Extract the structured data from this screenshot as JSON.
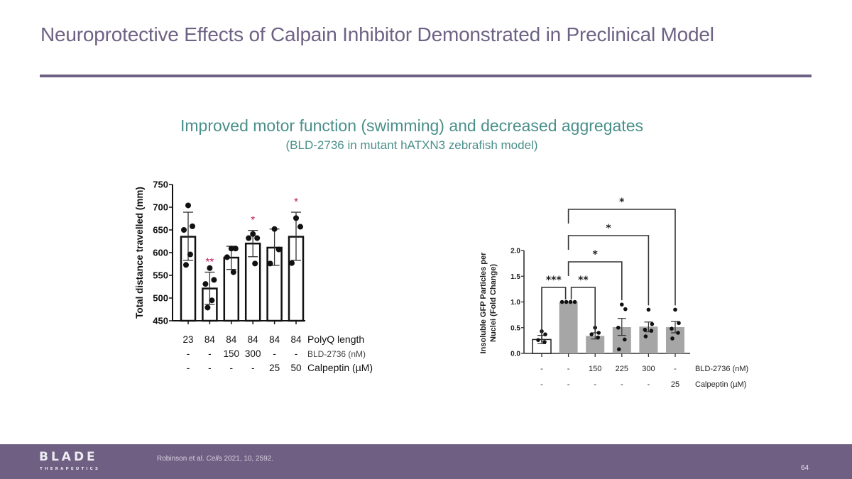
{
  "slide": {
    "title": "Neuroprotective Effects of Calpain Inhibitor Demonstrated in Preclinical Model",
    "subtitle": "Improved motor function (swimming) and decreased aggregates",
    "subtitle_detail": "(BLD-2736 in mutant hATXN3 zebrafish model)",
    "page_number": "64"
  },
  "footer": {
    "logo_main": "BLADE",
    "logo_sub": "THERAPEUTICS",
    "citation_authors": "Robinson et al. ",
    "citation_journal": "Cells",
    "citation_rest": " 2021, 10, 2592."
  },
  "colors": {
    "title": "#6e6284",
    "subtitle": "#4a8f8a",
    "footer_bg": "#6f5f83",
    "significance_red": "#c2185b",
    "bar_gray": "#a6a6a6"
  },
  "chart_data": [
    {
      "type": "bar",
      "title": "",
      "xlabel": "",
      "ylabel": "Total distance travelled (mm)",
      "ylim": [
        450,
        750
      ],
      "yticks": [
        "450",
        "500",
        "550",
        "600",
        "650",
        "700",
        "750"
      ],
      "grid": false,
      "categories": [
        "23|-|-",
        "84|-|-",
        "84|150|-",
        "84|300|-",
        "84|-|25",
        "84|-|50"
      ],
      "row_labels": [
        {
          "label": "PolyQ length",
          "values": [
            "23",
            "84",
            "84",
            "84",
            "84",
            "84"
          ]
        },
        {
          "label": "BLD-2736 (nM)",
          "values": [
            "-",
            "-",
            "150",
            "300",
            "-",
            "-"
          ]
        },
        {
          "label": "Calpeptin (µM)",
          "values": [
            "-",
            "-",
            "-",
            "-",
            "25",
            "50"
          ]
        }
      ],
      "series": [
        {
          "name": "Mean",
          "values": [
            635,
            521,
            589,
            620,
            611,
            635
          ],
          "error_low": [
            583,
            486,
            563,
            591,
            572,
            583
          ],
          "error_high": [
            689,
            557,
            614,
            649,
            652,
            689
          ],
          "points": [
            [
              704,
              658,
              650,
              596,
              573
            ],
            [
              566,
              540,
              531,
              495,
              479
            ],
            [
              609,
              609,
              590,
              557
            ],
            [
              641,
              632,
              632,
              576
            ],
            [
              652,
              607,
              576
            ],
            [
              676,
              657,
              577
            ]
          ],
          "significance": [
            "",
            "**",
            "",
            "*",
            "",
            "*"
          ]
        }
      ]
    },
    {
      "type": "bar",
      "title": "",
      "xlabel": "",
      "ylabel": "Insoluble GFP Particles per Nuclei (Fold Change)",
      "ylim": [
        0,
        2.0
      ],
      "yticks": [
        "0.0",
        "0.5",
        "1.0",
        "1.5",
        "2.0"
      ],
      "grid": false,
      "categories": [
        "-|-",
        "-|-",
        "150|-",
        "225|-",
        "300|-",
        "-|25"
      ],
      "row_labels": [
        {
          "label": "BLD-2736 (nM)",
          "values": [
            "-",
            "-",
            "150",
            "225",
            "300",
            "-"
          ]
        },
        {
          "label": "Calpeptin (µM)",
          "values": [
            "-",
            "-",
            "-",
            "-",
            "-",
            "25"
          ]
        }
      ],
      "series": [
        {
          "name": "Mean",
          "values": [
            0.27,
            1.0,
            0.34,
            0.51,
            0.52,
            0.51
          ],
          "error_low": [
            0.19,
            1.0,
            0.28,
            0.35,
            0.42,
            0.4
          ],
          "error_high": [
            0.35,
            1.0,
            0.4,
            0.68,
            0.61,
            0.62
          ],
          "points": [
            [
              0.43,
              0.37,
              0.26,
              0.22
            ],
            [
              1.0,
              1.0,
              1.0,
              1.0
            ],
            [
              0.5,
              0.4,
              0.37,
              0.31
            ],
            [
              0.95,
              0.86,
              0.5,
              0.27,
              0.08
            ],
            [
              0.85,
              0.57,
              0.46,
              0.44,
              0.33
            ],
            [
              0.85,
              0.59,
              0.48,
              0.4,
              0.29
            ]
          ],
          "fill": [
            "white",
            "gray",
            "gray",
            "gray",
            "gray",
            "gray"
          ]
        }
      ],
      "comparisons": [
        {
          "from": 0,
          "to": 1,
          "label": "***"
        },
        {
          "from": 1,
          "to": 2,
          "label": "**"
        },
        {
          "from": 1,
          "to": 3,
          "label": "*"
        },
        {
          "from": 1,
          "to": 4,
          "label": "*"
        },
        {
          "from": 1,
          "to": 5,
          "label": "*"
        }
      ]
    }
  ]
}
